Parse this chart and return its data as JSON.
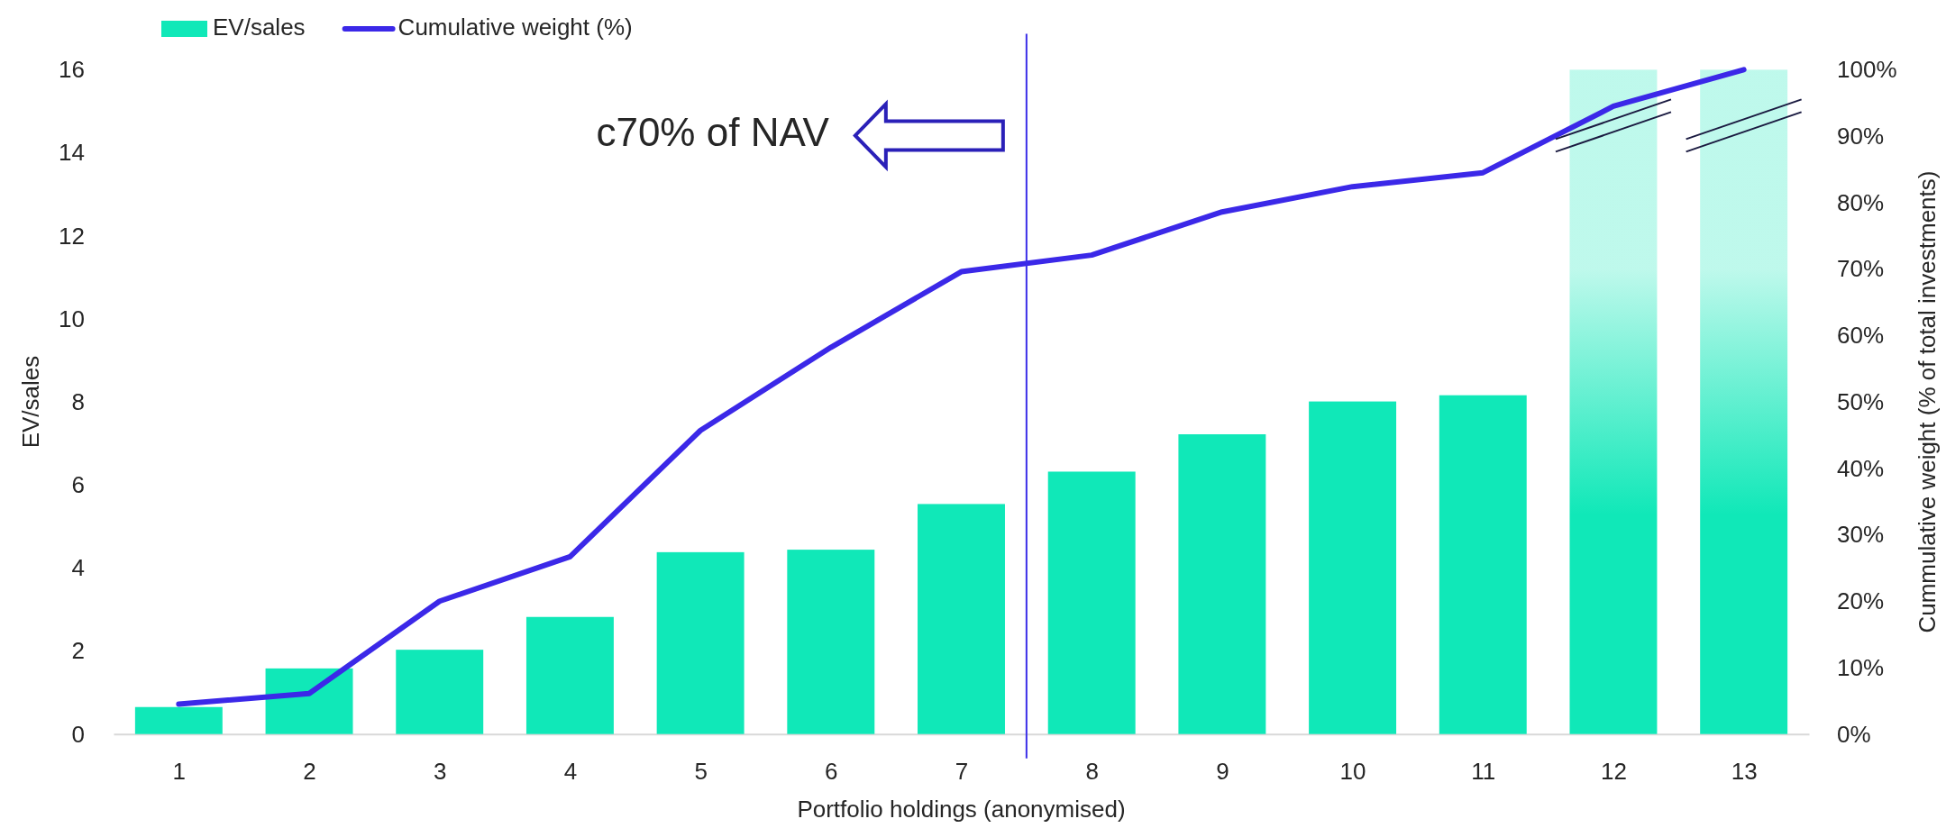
{
  "chart_data": {
    "type": "bar",
    "x": [
      1,
      2,
      3,
      4,
      5,
      6,
      7,
      8,
      9,
      10,
      11,
      12,
      13
    ],
    "xlim": [
      0.5,
      13.5
    ],
    "xticks": [
      1,
      2,
      3,
      4,
      5,
      6,
      7,
      8,
      9,
      10,
      11,
      12,
      13
    ],
    "xlabel": "Portfolio holdings (anonymised)",
    "ylabel": "EV/sales",
    "y2label": "Cummulative weight (% of total investments)",
    "ylim": [
      0,
      16
    ],
    "yticks": [
      0,
      2,
      4,
      6,
      8,
      10,
      12,
      14,
      16
    ],
    "y2lim": [
      0,
      100
    ],
    "y2ticks": [
      {
        "value": 0,
        "label": "0%"
      },
      {
        "value": 10,
        "label": "10%"
      },
      {
        "value": 20,
        "label": "20%"
      },
      {
        "value": 30,
        "label": "30%"
      },
      {
        "value": 40,
        "label": "40%"
      },
      {
        "value": 50,
        "label": "50%"
      },
      {
        "value": 60,
        "label": "60%"
      },
      {
        "value": 70,
        "label": "70%"
      },
      {
        "value": 80,
        "label": "80%"
      },
      {
        "value": 90,
        "label": "90%"
      },
      {
        "value": 100,
        "label": "100%"
      }
    ],
    "series": [
      {
        "name": "EV/sales",
        "color": "#10e8b8",
        "values": [
          0.65,
          1.58,
          2.03,
          2.82,
          4.38,
          4.44,
          5.54,
          6.32,
          7.22,
          8.01,
          8.16,
          16,
          16
        ]
      },
      {
        "name": "Cumulative weight (%)",
        "type": "line",
        "axis": "y2",
        "color": "#3b28e8",
        "values": [
          4.5,
          6.1,
          20.0,
          26.7,
          45.7,
          58.2,
          69.6,
          72.1,
          78.6,
          82.4,
          84.5,
          94.5,
          100
        ]
      }
    ],
    "legend": "top",
    "ref_lines": [
      {
        "axis": "x",
        "value": 7.5,
        "color": "#3a2ee8"
      }
    ],
    "annotations": [
      "c70% of NAV"
    ]
  }
}
